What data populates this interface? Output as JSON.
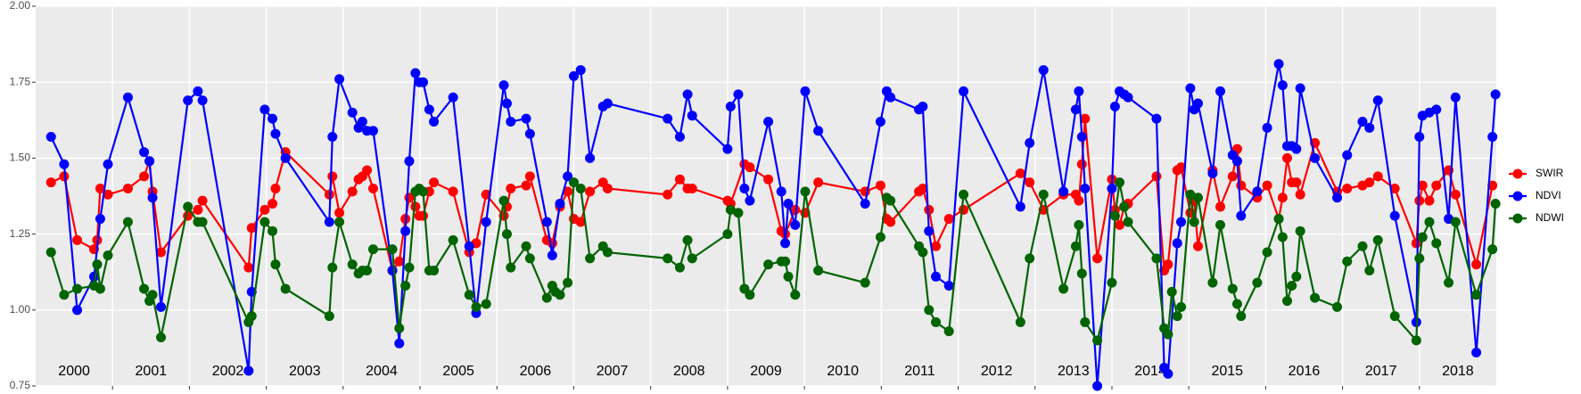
{
  "chart_data": {
    "type": "line",
    "xlim": [
      2000,
      2019
    ],
    "xticks": [
      2001,
      2002,
      2003,
      2004,
      2005,
      2006,
      2007,
      2008,
      2009,
      2010,
      2011,
      2012,
      2013,
      2014,
      2015,
      2016,
      2017,
      2018
    ],
    "year_labels": [
      "2000",
      "2001",
      "2002",
      "2003",
      "2004",
      "2005",
      "2006",
      "2007",
      "2008",
      "2009",
      "2010",
      "2011",
      "2012",
      "2013",
      "2014",
      "2015",
      "2016",
      "2017",
      "2018"
    ],
    "ylim": [
      0.75,
      2.0
    ],
    "yticks": [
      0.75,
      {
        "value": 1.0,
        "label": "1.00"
      },
      1.25,
      {
        "value": 1.5,
        "label": "1.50"
      },
      1.75,
      {
        "value": 2.0,
        "label": "2.00"
      }
    ],
    "grid": true,
    "legend": "right",
    "series": [
      {
        "name": "SWIR",
        "color": "#ff0000",
        "x": [
          2000.2,
          2000.37,
          2000.54,
          2000.76,
          2000.8,
          2000.84,
          2000.94,
          2001.2,
          2001.41,
          2001.48,
          2001.52,
          2001.63,
          2001.98,
          2002.11,
          2002.17,
          2002.77,
          2002.81,
          2002.98,
          2003.08,
          2003.12,
          2003.25,
          2003.82,
          2003.86,
          2003.95,
          2004.12,
          2004.2,
          2004.25,
          2004.31,
          2004.39,
          2004.64,
          2004.73,
          2004.81,
          2004.86,
          2004.94,
          2004.99,
          2005.04,
          2005.12,
          2005.18,
          2005.43,
          2005.64,
          2005.73,
          2005.86,
          2006.09,
          2006.13,
          2006.18,
          2006.38,
          2006.43,
          2006.65,
          2006.72,
          2006.82,
          2006.92,
          2007.0,
          2007.09,
          2007.21,
          2007.38,
          2007.44,
          2008.22,
          2008.38,
          2008.48,
          2008.54,
          2009.0,
          2009.04,
          2009.22,
          2009.29,
          2009.53,
          2009.7,
          2009.75,
          2009.88,
          2010.01,
          2010.18,
          2010.79,
          2010.99,
          2011.07,
          2011.12,
          2011.49,
          2011.54,
          2011.62,
          2011.71,
          2011.88,
          2012.07,
          2012.81,
          2012.93,
          2013.11,
          2013.37,
          2013.53,
          2013.57,
          2013.61,
          2013.65,
          2013.81,
          2014.0,
          2014.04,
          2014.1,
          2014.16,
          2014.21,
          2014.58,
          2014.68,
          2014.73,
          2014.85,
          2014.9,
          2015.02,
          2015.07,
          2015.12,
          2015.31,
          2015.41,
          2015.57,
          2015.63,
          2015.68,
          2015.89,
          2016.02,
          2016.17,
          2016.22,
          2016.28,
          2016.34,
          2016.4,
          2016.45,
          2016.64,
          2016.93,
          2017.06,
          2017.26,
          2017.35,
          2017.46,
          2017.68,
          2017.96,
          2018.0,
          2018.04,
          2018.13,
          2018.22,
          2018.38,
          2018.47,
          2018.74,
          2018.95
        ],
        "values": [
          1.42,
          1.44,
          1.23,
          1.2,
          1.23,
          1.4,
          1.38,
          1.4,
          1.44,
          1.49,
          1.39,
          1.19,
          1.31,
          1.33,
          1.36,
          1.14,
          1.27,
          1.33,
          1.35,
          1.4,
          1.52,
          1.38,
          1.44,
          1.32,
          1.39,
          1.43,
          1.44,
          1.46,
          1.4,
          1.13,
          1.16,
          1.3,
          1.37,
          1.34,
          1.31,
          1.31,
          1.39,
          1.42,
          1.39,
          1.19,
          1.22,
          1.38,
          1.31,
          1.34,
          1.4,
          1.41,
          1.44,
          1.23,
          1.22,
          1.34,
          1.39,
          1.3,
          1.29,
          1.39,
          1.42,
          1.4,
          1.38,
          1.43,
          1.4,
          1.4,
          1.36,
          1.35,
          1.48,
          1.47,
          1.43,
          1.26,
          1.25,
          1.33,
          1.32,
          1.42,
          1.39,
          1.41,
          1.3,
          1.29,
          1.39,
          1.4,
          1.33,
          1.21,
          1.3,
          1.33,
          1.45,
          1.42,
          1.33,
          1.38,
          1.38,
          1.36,
          1.48,
          1.63,
          1.17,
          1.43,
          1.33,
          1.28,
          1.34,
          1.35,
          1.44,
          1.13,
          1.15,
          1.46,
          1.47,
          1.32,
          1.36,
          1.21,
          1.46,
          1.34,
          1.44,
          1.53,
          1.41,
          1.37,
          1.41,
          1.3,
          1.37,
          1.5,
          1.42,
          1.42,
          1.38,
          1.55,
          1.39,
          1.4,
          1.41,
          1.42,
          1.44,
          1.4,
          1.22,
          1.36,
          1.41,
          1.36,
          1.41,
          1.46,
          1.38,
          1.15,
          1.41
        ]
      },
      {
        "name": "NDVI",
        "color": "#0000ff",
        "x": [
          2000.2,
          2000.37,
          2000.54,
          2000.76,
          2000.84,
          2000.94,
          2001.2,
          2001.41,
          2001.48,
          2001.52,
          2001.63,
          2001.98,
          2002.11,
          2002.17,
          2002.77,
          2002.81,
          2002.98,
          2003.08,
          2003.12,
          2003.25,
          2003.82,
          2003.86,
          2003.95,
          2004.12,
          2004.2,
          2004.25,
          2004.31,
          2004.39,
          2004.64,
          2004.73,
          2004.81,
          2004.86,
          2004.94,
          2004.99,
          2005.04,
          2005.12,
          2005.18,
          2005.43,
          2005.64,
          2005.73,
          2005.86,
          2006.09,
          2006.13,
          2006.18,
          2006.38,
          2006.43,
          2006.65,
          2006.72,
          2006.82,
          2006.92,
          2007.0,
          2007.09,
          2007.21,
          2007.38,
          2007.44,
          2008.22,
          2008.38,
          2008.48,
          2008.54,
          2009.0,
          2009.04,
          2009.14,
          2009.22,
          2009.29,
          2009.53,
          2009.7,
          2009.75,
          2009.79,
          2009.88,
          2010.01,
          2010.18,
          2010.79,
          2010.99,
          2011.07,
          2011.12,
          2011.49,
          2011.54,
          2011.62,
          2011.71,
          2011.88,
          2012.07,
          2012.81,
          2012.93,
          2013.11,
          2013.37,
          2013.53,
          2013.57,
          2013.61,
          2013.65,
          2013.81,
          2014.0,
          2014.04,
          2014.1,
          2014.16,
          2014.21,
          2014.58,
          2014.68,
          2014.73,
          2014.85,
          2014.9,
          2015.02,
          2015.07,
          2015.12,
          2015.31,
          2015.41,
          2015.57,
          2015.63,
          2015.68,
          2015.89,
          2016.02,
          2016.17,
          2016.22,
          2016.28,
          2016.34,
          2016.4,
          2016.45,
          2016.64,
          2016.93,
          2017.06,
          2017.26,
          2017.35,
          2017.46,
          2017.68,
          2017.96,
          2018.0,
          2018.04,
          2018.13,
          2018.22,
          2018.38,
          2018.47,
          2018.74,
          2018.95,
          2018.99
        ],
        "values": [
          1.57,
          1.48,
          1.0,
          1.11,
          1.3,
          1.48,
          1.7,
          1.52,
          1.49,
          1.37,
          1.01,
          1.69,
          1.72,
          1.69,
          0.8,
          1.06,
          1.66,
          1.63,
          1.58,
          1.5,
          1.29,
          1.57,
          1.76,
          1.65,
          1.6,
          1.62,
          1.59,
          1.59,
          1.13,
          0.89,
          1.26,
          1.49,
          1.78,
          1.75,
          1.75,
          1.66,
          1.62,
          1.7,
          1.21,
          0.99,
          1.29,
          1.74,
          1.68,
          1.62,
          1.63,
          1.58,
          1.29,
          1.18,
          1.35,
          1.44,
          1.77,
          1.79,
          1.5,
          1.67,
          1.68,
          1.63,
          1.57,
          1.71,
          1.64,
          1.53,
          1.67,
          1.71,
          1.4,
          1.36,
          1.62,
          1.39,
          1.22,
          1.35,
          1.28,
          1.72,
          1.59,
          1.35,
          1.62,
          1.72,
          1.7,
          1.66,
          1.67,
          1.26,
          1.11,
          1.08,
          1.72,
          1.34,
          1.55,
          1.79,
          1.39,
          1.66,
          1.72,
          1.57,
          1.4,
          0.75,
          1.4,
          1.67,
          1.72,
          1.71,
          1.7,
          1.63,
          0.81,
          0.79,
          1.22,
          1.29,
          1.73,
          1.66,
          1.68,
          1.45,
          1.72,
          1.51,
          1.49,
          1.31,
          1.39,
          1.6,
          1.81,
          1.74,
          1.54,
          1.54,
          1.53,
          1.73,
          1.5,
          1.37,
          1.51,
          1.62,
          1.6,
          1.69,
          1.31,
          0.96,
          1.57,
          1.64,
          1.65,
          1.66,
          1.3,
          1.7,
          0.86,
          1.57,
          1.71
        ]
      },
      {
        "name": "NDWI",
        "color": "#006400",
        "x": [
          2000.2,
          2000.37,
          2000.54,
          2000.76,
          2000.8,
          2000.84,
          2000.94,
          2001.2,
          2001.41,
          2001.48,
          2001.52,
          2001.63,
          2001.98,
          2002.11,
          2002.17,
          2002.77,
          2002.81,
          2002.98,
          2003.08,
          2003.12,
          2003.25,
          2003.82,
          2003.86,
          2003.95,
          2004.12,
          2004.2,
          2004.25,
          2004.31,
          2004.39,
          2004.64,
          2004.73,
          2004.81,
          2004.86,
          2004.94,
          2004.99,
          2005.04,
          2005.12,
          2005.18,
          2005.43,
          2005.64,
          2005.73,
          2005.86,
          2006.09,
          2006.13,
          2006.18,
          2006.38,
          2006.43,
          2006.65,
          2006.72,
          2006.76,
          2006.82,
          2006.92,
          2007.0,
          2007.09,
          2007.21,
          2007.38,
          2007.44,
          2008.22,
          2008.38,
          2008.48,
          2008.54,
          2009.0,
          2009.04,
          2009.14,
          2009.22,
          2009.29,
          2009.53,
          2009.7,
          2009.75,
          2009.79,
          2009.88,
          2010.01,
          2010.18,
          2010.79,
          2010.99,
          2011.07,
          2011.12,
          2011.49,
          2011.54,
          2011.62,
          2011.71,
          2011.88,
          2012.07,
          2012.81,
          2012.93,
          2013.11,
          2013.37,
          2013.53,
          2013.57,
          2013.61,
          2013.65,
          2013.81,
          2014.0,
          2014.04,
          2014.1,
          2014.16,
          2014.21,
          2014.58,
          2014.68,
          2014.73,
          2014.78,
          2014.85,
          2014.9,
          2015.02,
          2015.07,
          2015.12,
          2015.31,
          2015.41,
          2015.57,
          2015.63,
          2015.68,
          2015.89,
          2016.02,
          2016.17,
          2016.22,
          2016.28,
          2016.34,
          2016.4,
          2016.45,
          2016.64,
          2016.93,
          2017.06,
          2017.26,
          2017.35,
          2017.46,
          2017.68,
          2017.96,
          2018.0,
          2018.04,
          2018.13,
          2018.22,
          2018.38,
          2018.47,
          2018.74,
          2018.95,
          2018.99
        ],
        "values": [
          1.19,
          1.05,
          1.07,
          1.08,
          1.15,
          1.07,
          1.18,
          1.29,
          1.07,
          1.03,
          1.05,
          0.91,
          1.34,
          1.29,
          1.29,
          0.96,
          0.98,
          1.29,
          1.26,
          1.15,
          1.07,
          0.98,
          1.14,
          1.29,
          1.15,
          1.12,
          1.13,
          1.13,
          1.2,
          1.2,
          0.94,
          1.08,
          1.14,
          1.39,
          1.4,
          1.39,
          1.13,
          1.13,
          1.23,
          1.05,
          1.01,
          1.02,
          1.36,
          1.25,
          1.14,
          1.21,
          1.17,
          1.04,
          1.08,
          1.06,
          1.05,
          1.09,
          1.42,
          1.4,
          1.17,
          1.21,
          1.19,
          1.17,
          1.14,
          1.23,
          1.17,
          1.25,
          1.33,
          1.32,
          1.07,
          1.05,
          1.15,
          1.16,
          1.16,
          1.11,
          1.05,
          1.39,
          1.13,
          1.09,
          1.24,
          1.37,
          1.36,
          1.21,
          1.19,
          1.0,
          0.96,
          0.93,
          1.38,
          0.96,
          1.17,
          1.38,
          1.07,
          1.21,
          1.28,
          1.12,
          0.96,
          0.9,
          1.09,
          1.31,
          1.42,
          1.34,
          1.29,
          1.17,
          0.94,
          0.92,
          1.06,
          0.98,
          1.01,
          1.38,
          1.29,
          1.37,
          1.09,
          1.28,
          1.07,
          1.02,
          0.98,
          1.09,
          1.19,
          1.3,
          1.24,
          1.03,
          1.08,
          1.11,
          1.26,
          1.04,
          1.01,
          1.16,
          1.21,
          1.13,
          1.23,
          0.98,
          0.9,
          1.17,
          1.24,
          1.29,
          1.22,
          1.09,
          1.29,
          1.05,
          1.2,
          1.35
        ]
      }
    ]
  }
}
